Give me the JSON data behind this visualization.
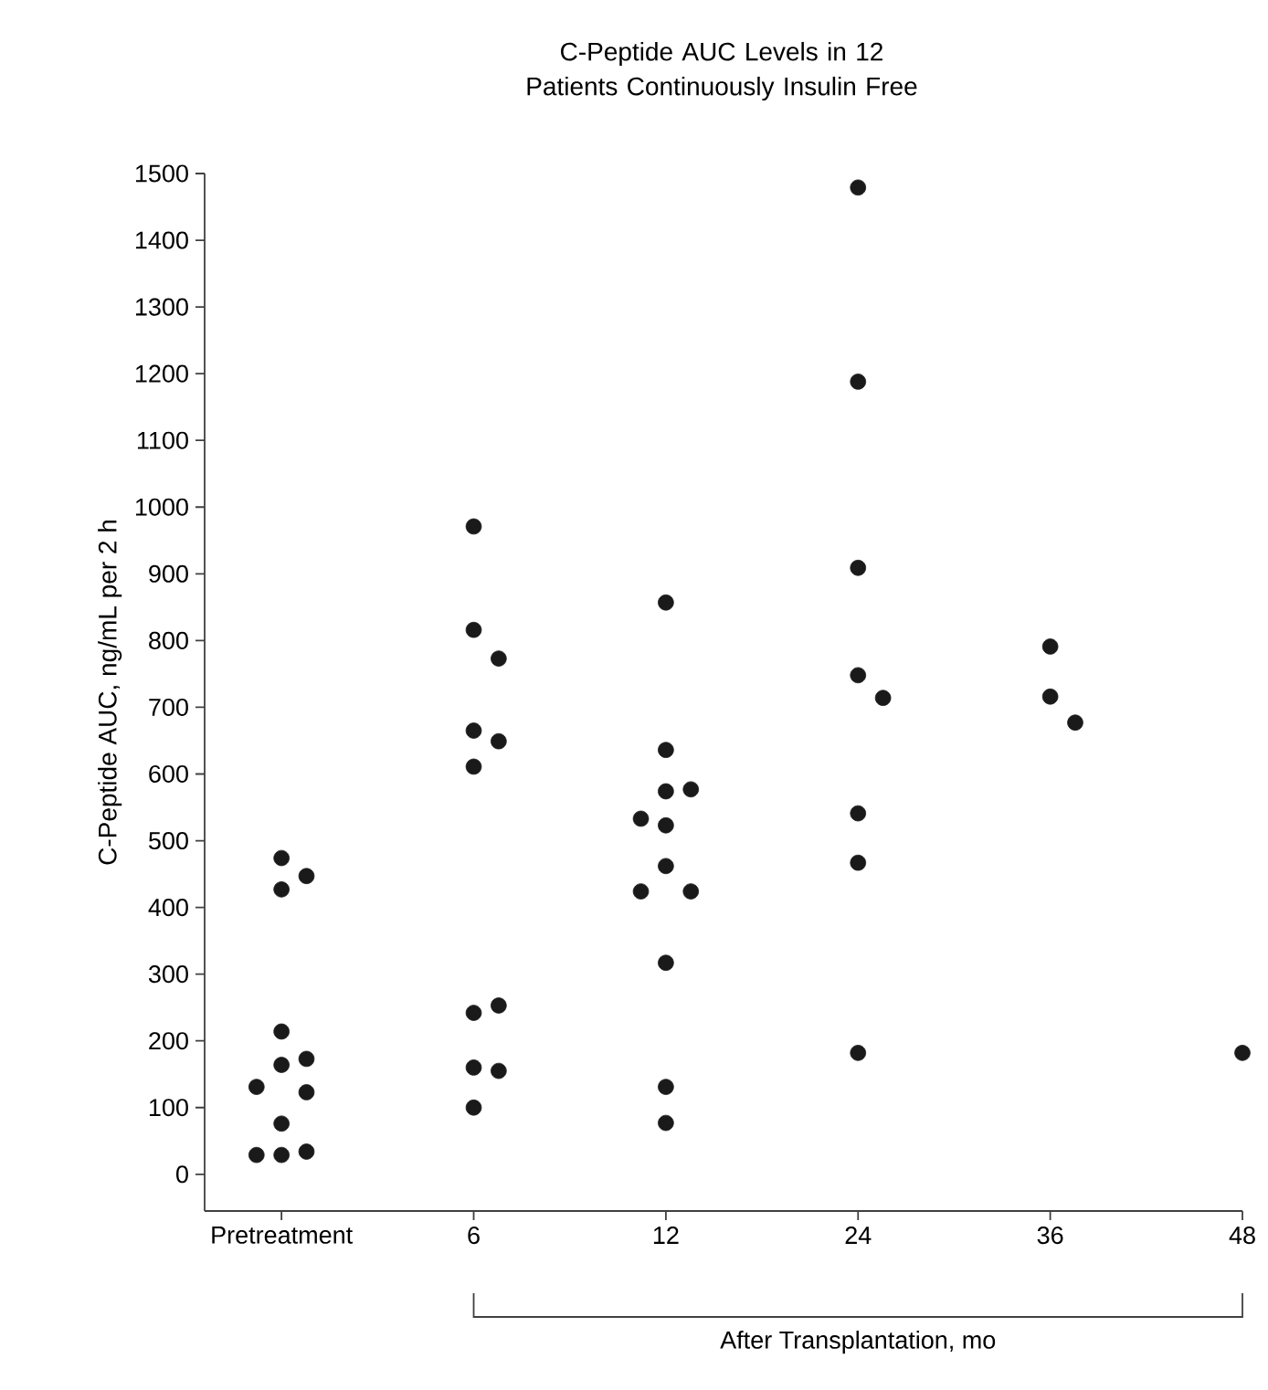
{
  "chart_data": {
    "type": "scatter",
    "title": "C-Peptide AUC Levels in 12 Patients Continuously Insulin Free",
    "ylabel": "C-Peptide AUC, ng/mL per 2 h",
    "annotations": [
      "After Transplantation, mo"
    ],
    "categories": [
      "Pretreatment",
      "6",
      "12",
      "24",
      "36",
      "48"
    ],
    "ylim": [
      -55,
      1500
    ],
    "yticks": [
      0,
      100,
      200,
      300,
      400,
      500,
      600,
      700,
      800,
      900,
      1000,
      1100,
      1200,
      1300,
      1400,
      1500
    ],
    "marker": "circle",
    "series": [
      {
        "color": "#1a1a1a",
        "x": [
          "Pretreatment",
          "Pretreatment",
          "Pretreatment",
          "Pretreatment",
          "Pretreatment",
          "Pretreatment",
          "Pretreatment",
          "Pretreatment",
          "Pretreatment",
          "Pretreatment",
          "Pretreatment",
          "Pretreatment",
          "6",
          "6",
          "6",
          "6",
          "6",
          "6",
          "6",
          "6",
          "6",
          "6",
          "6",
          "12",
          "12",
          "12",
          "12",
          "12",
          "12",
          "12",
          "12",
          "12",
          "12",
          "12",
          "12",
          "24",
          "24",
          "24",
          "24",
          "24",
          "24",
          "24",
          "24",
          "36",
          "36",
          "36",
          "48"
        ],
        "values": [
          474,
          447,
          427,
          214,
          164,
          173,
          123,
          131,
          76,
          34,
          29,
          29,
          971,
          816,
          773,
          665,
          649,
          611,
          242,
          253,
          160,
          155,
          100,
          857,
          636,
          574,
          577,
          523,
          533,
          462,
          424,
          424,
          317,
          131,
          77,
          1479,
          1188,
          909,
          748,
          714,
          541,
          467,
          182,
          791,
          716,
          677,
          182
        ]
      }
    ]
  }
}
